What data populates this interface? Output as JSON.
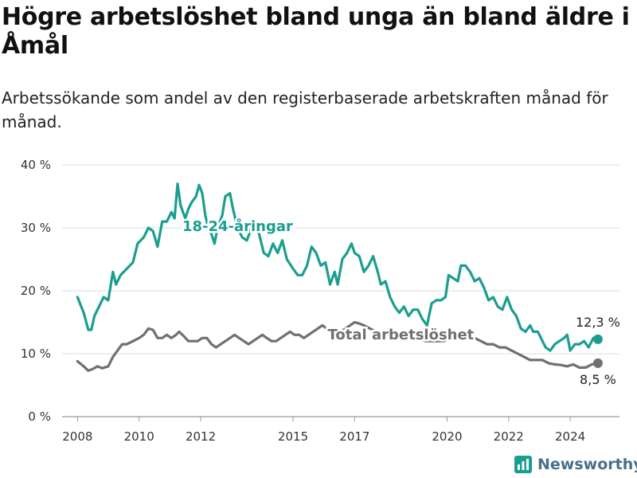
{
  "title": "Högre arbetslöshet bland unga än bland äldre i Åmål",
  "subtitle": "Arbetssökande som andel av den registerbaserade arbetskraften månad för månad.",
  "brand": {
    "name": "Newsworthy",
    "color": "#4a6f8a"
  },
  "chart_data": {
    "type": "line",
    "ylim": [
      0,
      40
    ],
    "y_ticks": [
      0,
      10,
      20,
      30,
      40
    ],
    "y_tick_labels": [
      "0 %",
      "10 %",
      "20 %",
      "30 %",
      "40 %"
    ],
    "x_ticks": [
      2008,
      2010,
      2012,
      2015,
      2017,
      2020,
      2022,
      2024
    ],
    "x_tick_labels": [
      "2008",
      "2010",
      "2012",
      "2015",
      "2017",
      "2020",
      "2022",
      "2024"
    ],
    "xlim": [
      2007.5,
      2025.6
    ],
    "grid": true,
    "series": [
      {
        "name": "18-24-åringar",
        "color": "#1a9e8f",
        "end_label": "12,3 %",
        "points": [
          [
            2008.0,
            19
          ],
          [
            2008.2,
            16.5
          ],
          [
            2008.35,
            13.8
          ],
          [
            2008.45,
            13.8
          ],
          [
            2008.55,
            16
          ],
          [
            2008.7,
            17.5
          ],
          [
            2008.85,
            19
          ],
          [
            2009.0,
            18.5
          ],
          [
            2009.15,
            23
          ],
          [
            2009.25,
            21
          ],
          [
            2009.4,
            22.5
          ],
          [
            2009.6,
            23.5
          ],
          [
            2009.8,
            24.5
          ],
          [
            2009.95,
            27.5
          ],
          [
            2010.15,
            28.5
          ],
          [
            2010.3,
            30
          ],
          [
            2010.45,
            29.5
          ],
          [
            2010.6,
            27
          ],
          [
            2010.75,
            31
          ],
          [
            2010.9,
            31
          ],
          [
            2011.05,
            32.5
          ],
          [
            2011.15,
            31.5
          ],
          [
            2011.25,
            37
          ],
          [
            2011.35,
            33.5
          ],
          [
            2011.5,
            31.5
          ],
          [
            2011.6,
            33
          ],
          [
            2011.7,
            34
          ],
          [
            2011.85,
            35
          ],
          [
            2011.95,
            36.8
          ],
          [
            2012.05,
            35.5
          ],
          [
            2012.15,
            32
          ],
          [
            2012.25,
            30
          ],
          [
            2012.35,
            29
          ],
          [
            2012.45,
            27.5
          ],
          [
            2012.55,
            30
          ],
          [
            2012.7,
            32
          ],
          [
            2012.8,
            35
          ],
          [
            2012.95,
            35.5
          ],
          [
            2013.05,
            33
          ],
          [
            2013.2,
            30
          ],
          [
            2013.35,
            28.5
          ],
          [
            2013.5,
            28
          ],
          [
            2013.65,
            30
          ],
          [
            2013.75,
            30.5
          ],
          [
            2013.9,
            29
          ],
          [
            2014.05,
            26
          ],
          [
            2014.2,
            25.5
          ],
          [
            2014.35,
            27.5
          ],
          [
            2014.5,
            26
          ],
          [
            2014.65,
            28
          ],
          [
            2014.8,
            25
          ],
          [
            2015.0,
            23.5
          ],
          [
            2015.15,
            22.5
          ],
          [
            2015.3,
            22.5
          ],
          [
            2015.45,
            24
          ],
          [
            2015.6,
            27
          ],
          [
            2015.75,
            26
          ],
          [
            2015.9,
            24
          ],
          [
            2016.05,
            24.5
          ],
          [
            2016.2,
            21
          ],
          [
            2016.35,
            23
          ],
          [
            2016.45,
            21
          ],
          [
            2016.6,
            25
          ],
          [
            2016.75,
            26
          ],
          [
            2016.9,
            27.5
          ],
          [
            2017.0,
            26
          ],
          [
            2017.15,
            25.5
          ],
          [
            2017.3,
            23
          ],
          [
            2017.45,
            24
          ],
          [
            2017.6,
            25.5
          ],
          [
            2017.75,
            23
          ],
          [
            2017.85,
            21
          ],
          [
            2018.0,
            21.5
          ],
          [
            2018.15,
            19
          ],
          [
            2018.3,
            17.5
          ],
          [
            2018.45,
            16.5
          ],
          [
            2018.6,
            17.5
          ],
          [
            2018.75,
            16
          ],
          [
            2018.9,
            17
          ],
          [
            2019.05,
            17
          ],
          [
            2019.2,
            15.5
          ],
          [
            2019.35,
            14.5
          ],
          [
            2019.5,
            18
          ],
          [
            2019.65,
            18.5
          ],
          [
            2019.8,
            18.5
          ],
          [
            2019.95,
            19
          ],
          [
            2020.05,
            22.5
          ],
          [
            2020.2,
            22
          ],
          [
            2020.35,
            21.5
          ],
          [
            2020.45,
            24
          ],
          [
            2020.6,
            24
          ],
          [
            2020.75,
            23
          ],
          [
            2020.9,
            21.5
          ],
          [
            2021.05,
            22
          ],
          [
            2021.2,
            20.5
          ],
          [
            2021.35,
            18.5
          ],
          [
            2021.5,
            19
          ],
          [
            2021.65,
            17.5
          ],
          [
            2021.8,
            17
          ],
          [
            2021.95,
            19
          ],
          [
            2022.1,
            17
          ],
          [
            2022.25,
            16
          ],
          [
            2022.4,
            14
          ],
          [
            2022.55,
            13.5
          ],
          [
            2022.7,
            14.5
          ],
          [
            2022.8,
            13.5
          ],
          [
            2022.95,
            13.5
          ],
          [
            2023.05,
            12.5
          ],
          [
            2023.2,
            11
          ],
          [
            2023.35,
            10.5
          ],
          [
            2023.5,
            11.5
          ],
          [
            2023.65,
            12
          ],
          [
            2023.8,
            12.5
          ],
          [
            2023.9,
            13
          ],
          [
            2024.0,
            10.5
          ],
          [
            2024.15,
            11.5
          ],
          [
            2024.3,
            11.5
          ],
          [
            2024.45,
            12
          ],
          [
            2024.6,
            11
          ],
          [
            2024.75,
            12.5
          ],
          [
            2024.9,
            12.3
          ]
        ]
      },
      {
        "name": "Total arbetslöshet",
        "color": "#707070",
        "end_label": "8,5 %",
        "points": [
          [
            2008.0,
            8.8
          ],
          [
            2008.2,
            8
          ],
          [
            2008.35,
            7.3
          ],
          [
            2008.5,
            7.6
          ],
          [
            2008.65,
            8
          ],
          [
            2008.8,
            7.7
          ],
          [
            2009.0,
            8
          ],
          [
            2009.15,
            9.5
          ],
          [
            2009.3,
            10.5
          ],
          [
            2009.45,
            11.5
          ],
          [
            2009.6,
            11.5
          ],
          [
            2009.8,
            12
          ],
          [
            2010.0,
            12.5
          ],
          [
            2010.15,
            13
          ],
          [
            2010.3,
            14
          ],
          [
            2010.45,
            13.8
          ],
          [
            2010.6,
            12.5
          ],
          [
            2010.75,
            12.5
          ],
          [
            2010.9,
            13
          ],
          [
            2011.05,
            12.5
          ],
          [
            2011.2,
            13
          ],
          [
            2011.3,
            13.5
          ],
          [
            2011.45,
            12.8
          ],
          [
            2011.6,
            12
          ],
          [
            2011.75,
            12
          ],
          [
            2011.9,
            12
          ],
          [
            2012.05,
            12.5
          ],
          [
            2012.2,
            12.5
          ],
          [
            2012.35,
            11.5
          ],
          [
            2012.5,
            11
          ],
          [
            2012.65,
            11.5
          ],
          [
            2012.8,
            12
          ],
          [
            2012.95,
            12.5
          ],
          [
            2013.1,
            13
          ],
          [
            2013.25,
            12.5
          ],
          [
            2013.4,
            12
          ],
          [
            2013.55,
            11.5
          ],
          [
            2013.7,
            12
          ],
          [
            2013.85,
            12.5
          ],
          [
            2014.0,
            13
          ],
          [
            2014.15,
            12.5
          ],
          [
            2014.3,
            12
          ],
          [
            2014.45,
            12
          ],
          [
            2014.6,
            12.5
          ],
          [
            2014.75,
            13
          ],
          [
            2014.9,
            13.5
          ],
          [
            2015.05,
            13
          ],
          [
            2015.2,
            13
          ],
          [
            2015.35,
            12.5
          ],
          [
            2015.5,
            13
          ],
          [
            2015.65,
            13.5
          ],
          [
            2015.8,
            14
          ],
          [
            2015.95,
            14.5
          ],
          [
            2016.1,
            14
          ],
          [
            2016.25,
            13.5
          ],
          [
            2016.4,
            13.5
          ],
          [
            2016.55,
            13.5
          ],
          [
            2016.7,
            14
          ],
          [
            2016.85,
            14.5
          ],
          [
            2017.0,
            15
          ],
          [
            2017.15,
            14.8
          ],
          [
            2017.3,
            14.5
          ],
          [
            2017.5,
            14
          ],
          [
            2017.7,
            13.5
          ],
          [
            2017.9,
            13
          ],
          [
            2018.1,
            13
          ],
          [
            2018.3,
            12.8
          ],
          [
            2018.5,
            12.5
          ],
          [
            2018.7,
            12.5
          ],
          [
            2018.9,
            12.5
          ],
          [
            2019.1,
            12.5
          ],
          [
            2019.3,
            12
          ],
          [
            2019.5,
            12
          ],
          [
            2019.7,
            12
          ],
          [
            2019.9,
            12
          ],
          [
            2020.1,
            12.5
          ],
          [
            2020.3,
            12.5
          ],
          [
            2020.5,
            12.5
          ],
          [
            2020.7,
            12.5
          ],
          [
            2020.9,
            12.5
          ],
          [
            2021.1,
            12
          ],
          [
            2021.3,
            11.5
          ],
          [
            2021.5,
            11.5
          ],
          [
            2021.7,
            11
          ],
          [
            2021.9,
            11
          ],
          [
            2022.1,
            10.5
          ],
          [
            2022.3,
            10
          ],
          [
            2022.5,
            9.5
          ],
          [
            2022.7,
            9
          ],
          [
            2022.9,
            9
          ],
          [
            2023.1,
            9
          ],
          [
            2023.3,
            8.5
          ],
          [
            2023.5,
            8.3
          ],
          [
            2023.7,
            8.2
          ],
          [
            2023.9,
            8
          ],
          [
            2024.1,
            8.3
          ],
          [
            2024.3,
            7.8
          ],
          [
            2024.5,
            7.8
          ],
          [
            2024.7,
            8.3
          ],
          [
            2024.9,
            8.5
          ]
        ]
      }
    ],
    "annotations": [
      {
        "text": "18-24-åringar",
        "x": 2013.2,
        "y": 29.5,
        "color": "#1a9e8f",
        "series": 0
      },
      {
        "text": "Total arbetslöshet",
        "x": 2018.5,
        "y": 12.3,
        "color": "#707070",
        "series": 1
      }
    ]
  }
}
